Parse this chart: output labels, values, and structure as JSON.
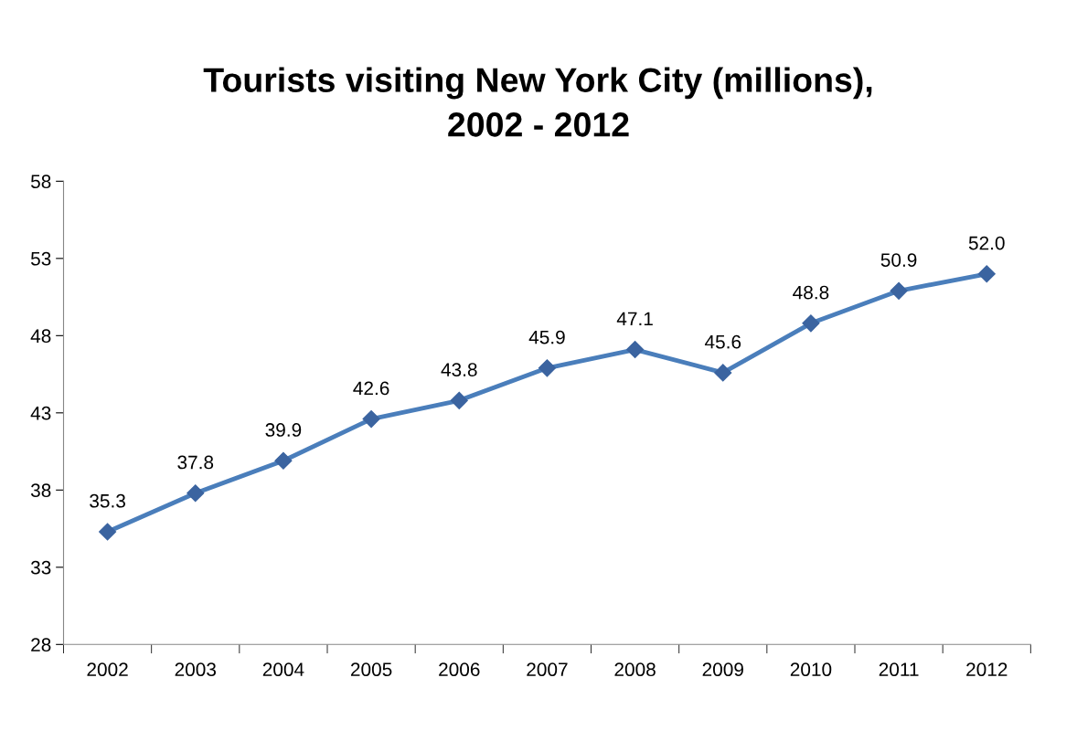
{
  "chart_data": {
    "type": "line",
    "title": "Tourists visiting New York City (millions),\n2002 - 2012",
    "categories": [
      "2002",
      "2003",
      "2004",
      "2005",
      "2006",
      "2007",
      "2008",
      "2009",
      "2010",
      "2011",
      "2012"
    ],
    "series": [
      {
        "color": "#4a7ebb",
        "values": [
          35.3,
          37.8,
          39.9,
          42.6,
          43.8,
          45.9,
          47.1,
          45.6,
          48.8,
          50.9,
          52.0
        ],
        "value_labels": [
          "35.3",
          "37.8",
          "39.9",
          "42.6",
          "43.8",
          "45.9",
          "47.1",
          "45.6",
          "48.8",
          "50.9",
          "52.0"
        ]
      }
    ],
    "ylim": [
      28,
      58
    ],
    "yticks": [
      28,
      33,
      38,
      43,
      48,
      53,
      58
    ],
    "grid": false,
    "legend": false,
    "marker": "diamond",
    "line_style": "solid"
  }
}
